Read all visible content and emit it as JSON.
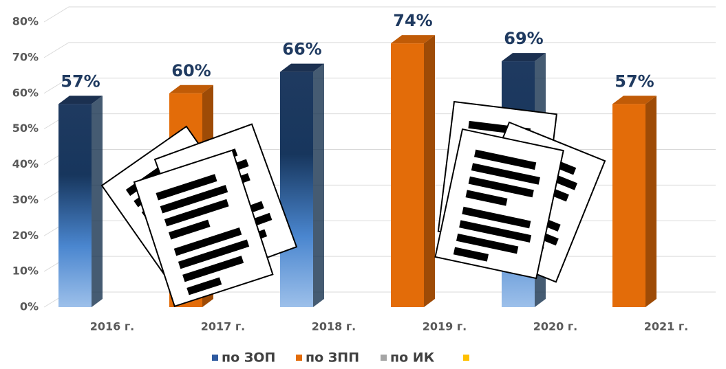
{
  "chart_data": {
    "type": "bar3d",
    "categories": [
      "2016 г.",
      "2017 г.",
      "2018 г.",
      "2019 г.",
      "2020 г.",
      "2021 г."
    ],
    "series": [
      {
        "name": "по ЗОП",
        "color": "#2f5aa0",
        "values": [
          57,
          null,
          66,
          null,
          69,
          null
        ],
        "value_labels": [
          "57%",
          null,
          "66%",
          null,
          "69%",
          null
        ]
      },
      {
        "name": "по ЗПП",
        "color": "#e36c09",
        "values": [
          null,
          60,
          null,
          74,
          null,
          57
        ],
        "value_labels": [
          null,
          "60%",
          null,
          "74%",
          null,
          "57%"
        ]
      },
      {
        "name": "по ИК",
        "color": "#a5a5a5",
        "values": [
          null,
          null,
          null,
          null,
          null,
          null
        ]
      },
      {
        "name": null,
        "color": "#ffc000",
        "values": [
          null,
          null,
          null,
          null,
          null,
          null
        ]
      }
    ],
    "ylim": [
      0,
      80
    ],
    "yticks": [
      {
        "value": 0,
        "label": "0%"
      },
      {
        "value": 10,
        "label": "10%"
      },
      {
        "value": 20,
        "label": "20%"
      },
      {
        "value": 30,
        "label": "30%"
      },
      {
        "value": 40,
        "label": "40%"
      },
      {
        "value": 50,
        "label": "50%"
      },
      {
        "value": 60,
        "label": "60%"
      },
      {
        "value": 70,
        "label": "70%"
      },
      {
        "value": 80,
        "label": "80%"
      }
    ],
    "grid": true,
    "legend": "bottom"
  }
}
